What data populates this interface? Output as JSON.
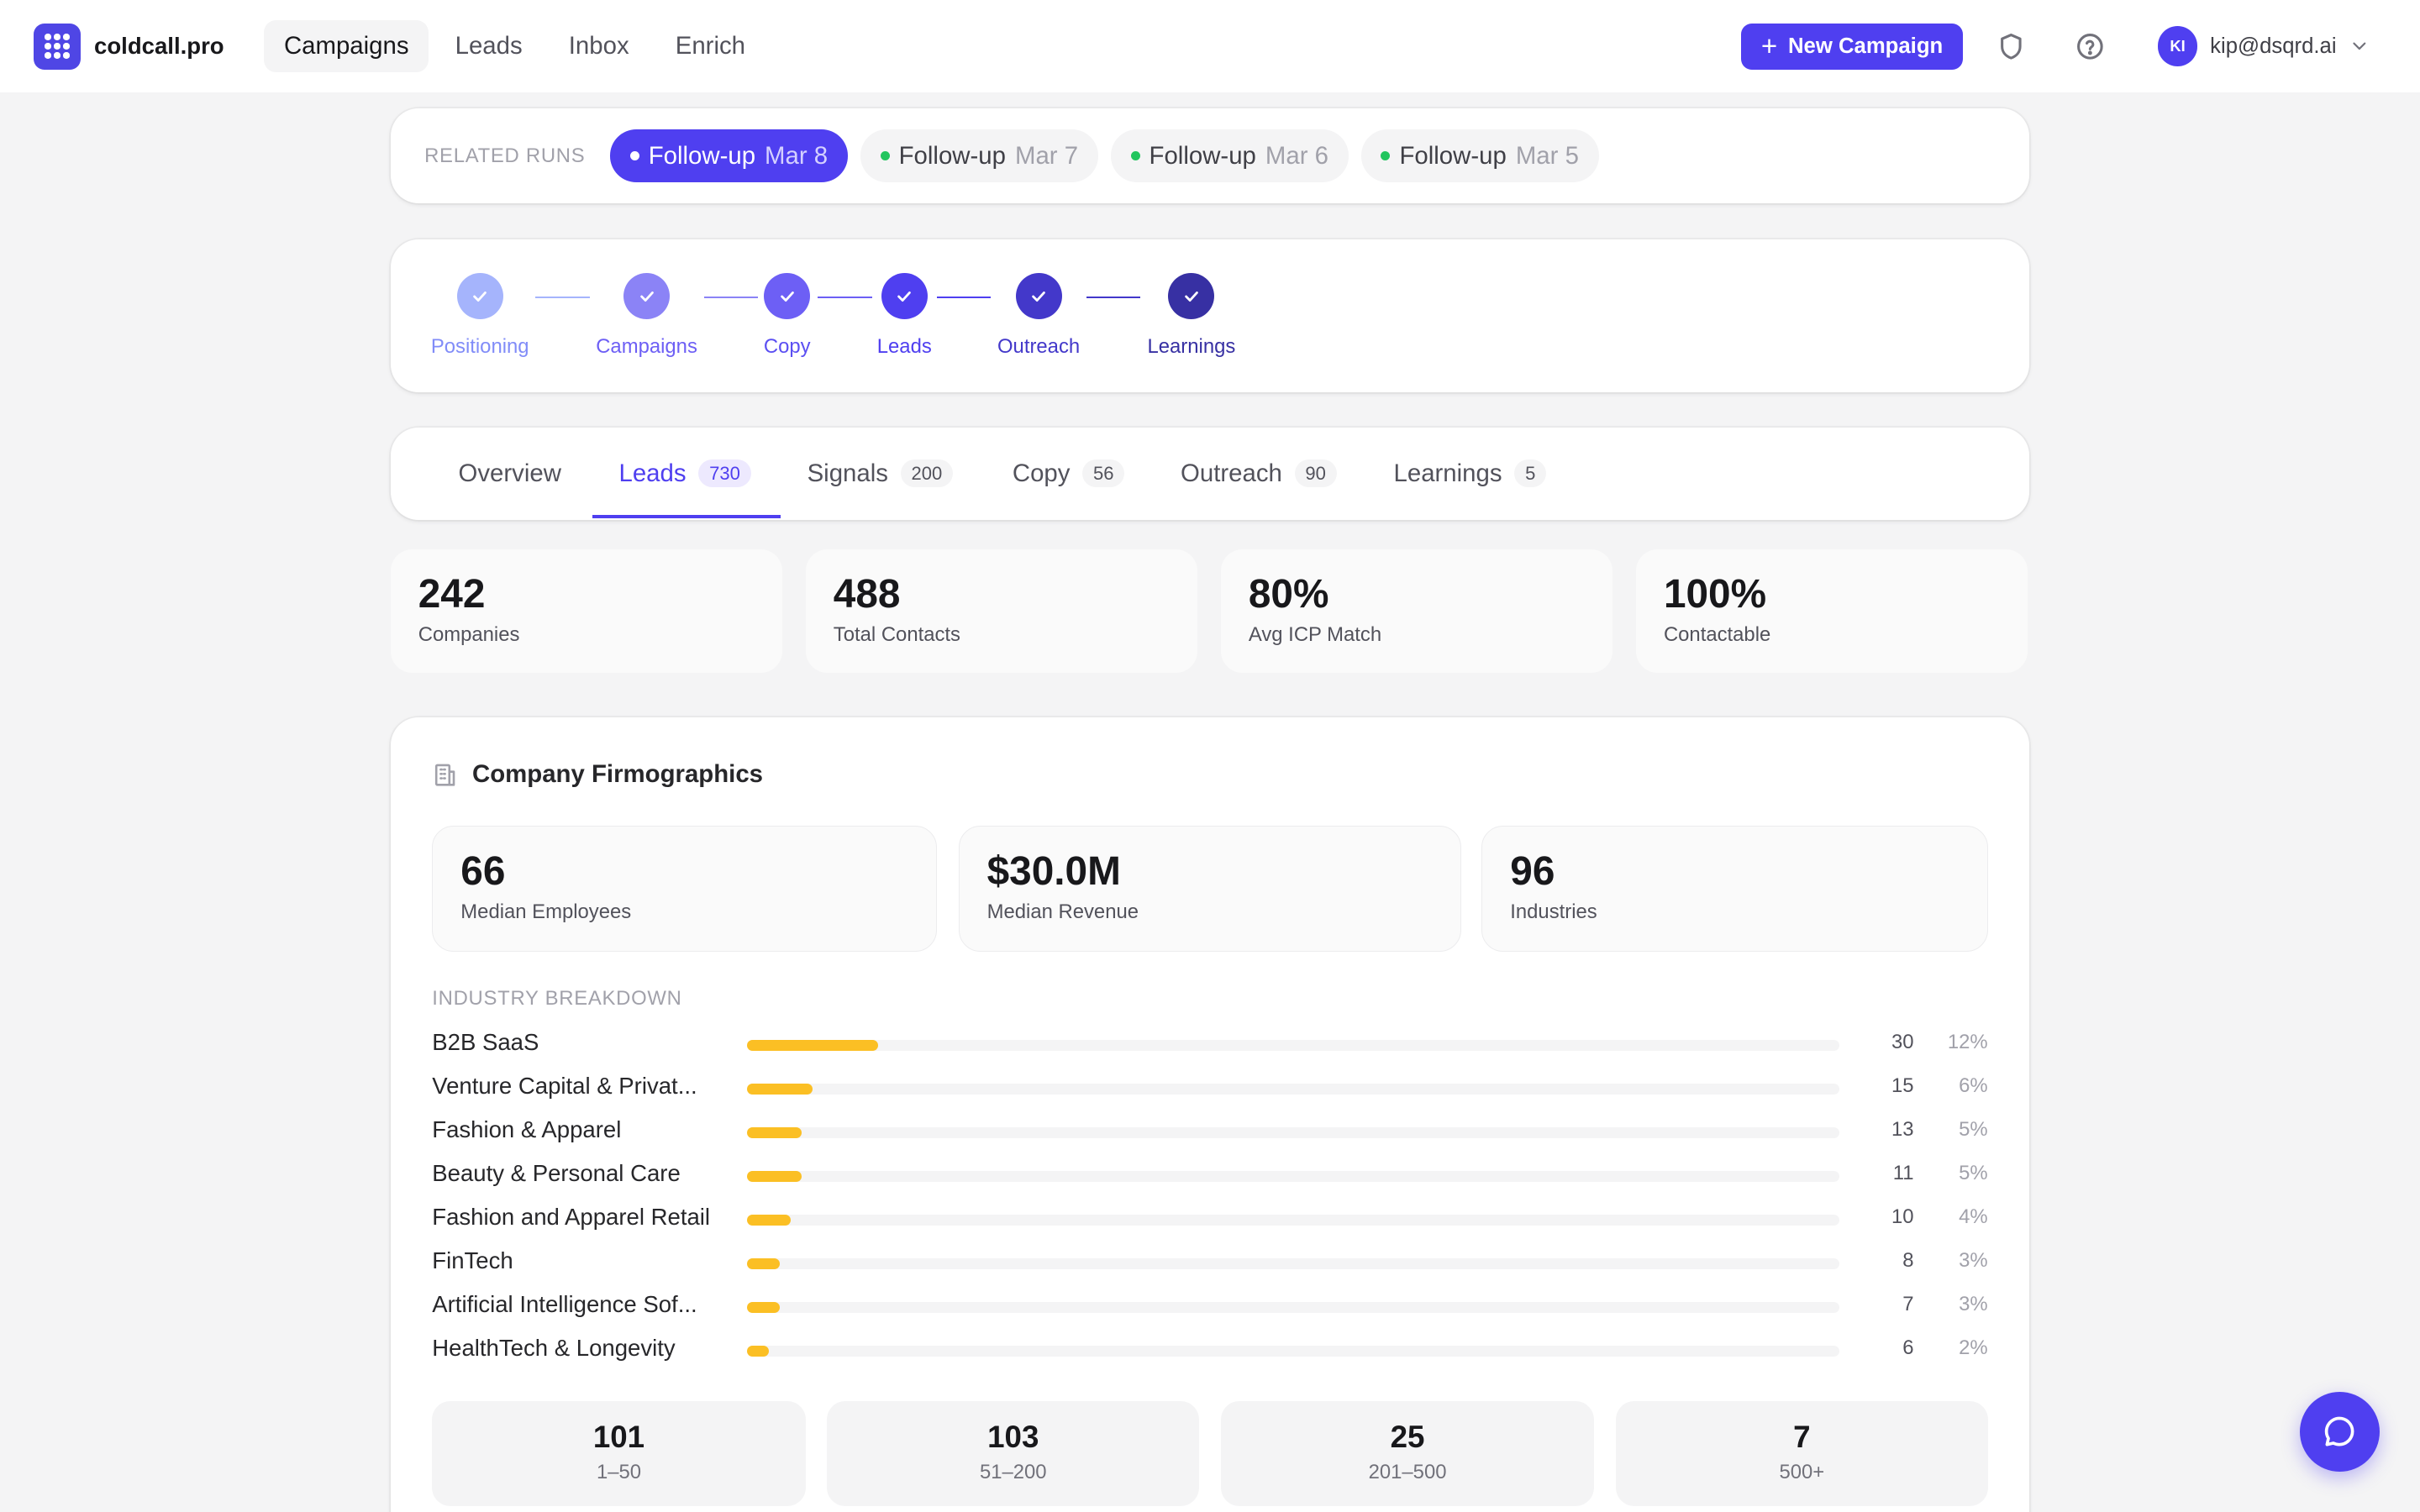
{
  "app": {
    "brand": "coldcall.pro"
  },
  "nav": [
    "Campaigns",
    "Leads",
    "Inbox",
    "Enrich"
  ],
  "header": {
    "new_campaign_label": "New Campaign",
    "user_initials": "KI",
    "user_email": "kip@dsqrd.ai"
  },
  "runs": {
    "label": "RELATED RUNS",
    "items": [
      {
        "name": "Follow-up",
        "date": "Mar 8"
      },
      {
        "name": "Follow-up",
        "date": "Mar 7"
      },
      {
        "name": "Follow-up",
        "date": "Mar 6"
      },
      {
        "name": "Follow-up",
        "date": "Mar 5"
      }
    ]
  },
  "steps": [
    "Positioning",
    "Campaigns",
    "Copy",
    "Leads",
    "Outreach",
    "Learnings"
  ],
  "tabs": [
    {
      "label": "Overview",
      "count": ""
    },
    {
      "label": "Leads",
      "count": "730"
    },
    {
      "label": "Signals",
      "count": "200"
    },
    {
      "label": "Copy",
      "count": "56"
    },
    {
      "label": "Outreach",
      "count": "90"
    },
    {
      "label": "Learnings",
      "count": "5"
    }
  ],
  "stats": [
    {
      "value": "242",
      "label": "Companies"
    },
    {
      "value": "488",
      "label": "Total Contacts"
    },
    {
      "value": "80%",
      "label": "Avg ICP Match"
    },
    {
      "value": "100%",
      "label": "Contactable"
    }
  ],
  "firmographics": {
    "title": "Company Firmographics",
    "metrics": [
      {
        "value": "66",
        "label": "Median Employees"
      },
      {
        "value": "$30.0M",
        "label": "Median Revenue"
      },
      {
        "value": "96",
        "label": "Industries"
      }
    ],
    "breakdown_label": "INDUSTRY BREAKDOWN",
    "industries": [
      {
        "name": "B2B SaaS",
        "count": "30",
        "pct": "12%",
        "share": 0.12
      },
      {
        "name": "Venture Capital & Privat...",
        "count": "15",
        "pct": "6%",
        "share": 0.06
      },
      {
        "name": "Fashion & Apparel",
        "count": "13",
        "pct": "5%",
        "share": 0.05
      },
      {
        "name": "Beauty & Personal Care",
        "count": "11",
        "pct": "5%",
        "share": 0.05
      },
      {
        "name": "Fashion and Apparel Retail",
        "count": "10",
        "pct": "4%",
        "share": 0.04
      },
      {
        "name": "FinTech",
        "count": "8",
        "pct": "3%",
        "share": 0.03
      },
      {
        "name": "Artificial Intelligence Sof...",
        "count": "7",
        "pct": "3%",
        "share": 0.03
      },
      {
        "name": "HealthTech & Longevity",
        "count": "6",
        "pct": "2%",
        "share": 0.02
      }
    ],
    "size_buckets": [
      {
        "value": "101",
        "label": "1–50"
      },
      {
        "value": "103",
        "label": "51–200"
      },
      {
        "value": "25",
        "label": "201–500"
      },
      {
        "value": "7",
        "label": "500+"
      }
    ]
  },
  "colors": {
    "accent": "#4f3ff0",
    "bar": "#fbbf24",
    "success": "#22c55e"
  },
  "icons": {
    "logo": "grid-dots-icon",
    "shield": "shield-icon",
    "help": "help-circle-icon",
    "chevron": "chevron-down-icon",
    "building": "building-icon",
    "chat": "chat-bubble-icon",
    "check": "check-icon"
  }
}
